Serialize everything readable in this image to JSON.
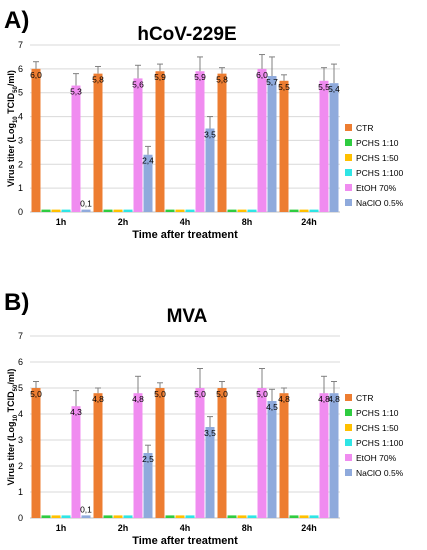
{
  "chart_data": [
    {
      "panel": "A)",
      "type": "bar",
      "title": "hCoV-229E",
      "xlabel": "Time after treatment",
      "ylabel": "Virus titer (Log10 TCID50/ml)",
      "ylim": [
        0,
        7
      ],
      "yticks": [
        0,
        1,
        2,
        3,
        4,
        5,
        6,
        7
      ],
      "grid": true,
      "legend": "right",
      "categories": [
        "1h",
        "2h",
        "4h",
        "8h",
        "24h"
      ],
      "series": [
        {
          "name": "CTR",
          "color": "#ED7D31",
          "values": [
            6.0,
            5.8,
            5.9,
            5.8,
            5.5
          ],
          "err": [
            0.3,
            0.3,
            0.3,
            0.25,
            0.25
          ]
        },
        {
          "name": "PCHS 1:10",
          "color": "#2ECC40",
          "values": [
            0.1,
            0.1,
            0.1,
            0.1,
            0.1
          ],
          "err": [
            0,
            0,
            0,
            0,
            0
          ]
        },
        {
          "name": "PCHS 1:50",
          "color": "#FFC000",
          "values": [
            0.1,
            0.1,
            0.1,
            0.1,
            0.1
          ],
          "err": [
            0,
            0,
            0,
            0,
            0
          ]
        },
        {
          "name": "PCHS 1:100",
          "color": "#2FE5E5",
          "values": [
            0.1,
            0.1,
            0.1,
            0.1,
            0.1
          ],
          "err": [
            0,
            0,
            0,
            0,
            0
          ]
        },
        {
          "name": "EtOH 70%",
          "color": "#F08CF0",
          "values": [
            5.3,
            5.6,
            5.9,
            6.0,
            5.5
          ],
          "err": [
            0.5,
            0.55,
            0.6,
            0.6,
            0.55
          ]
        },
        {
          "name": "NaClO 0.5%",
          "color": "#8FAADC",
          "values": [
            0.1,
            2.4,
            3.5,
            5.7,
            5.4
          ],
          "err": [
            0,
            0.35,
            0.5,
            0.8,
            0.8
          ]
        }
      ],
      "labels": [
        {
          "series": 0,
          "cat": 0,
          "text": "6,0"
        },
        {
          "series": 0,
          "cat": 1,
          "text": "5,8"
        },
        {
          "series": 0,
          "cat": 2,
          "text": "5,9"
        },
        {
          "series": 0,
          "cat": 3,
          "text": "5,8"
        },
        {
          "series": 0,
          "cat": 4,
          "text": "5,5"
        },
        {
          "series": 4,
          "cat": 0,
          "text": "5,3"
        },
        {
          "series": 4,
          "cat": 1,
          "text": "5,6"
        },
        {
          "series": 4,
          "cat": 2,
          "text": "5,9"
        },
        {
          "series": 4,
          "cat": 3,
          "text": "6,0"
        },
        {
          "series": 4,
          "cat": 4,
          "text": "5,5"
        },
        {
          "series": 5,
          "cat": 0,
          "text": "0,1"
        },
        {
          "series": 5,
          "cat": 1,
          "text": "2,4"
        },
        {
          "series": 5,
          "cat": 2,
          "text": "3,5"
        },
        {
          "series": 5,
          "cat": 3,
          "text": "5,7"
        },
        {
          "series": 5,
          "cat": 4,
          "text": "5,4"
        }
      ]
    },
    {
      "panel": "B)",
      "type": "bar",
      "title": "MVA",
      "xlabel": "Time after treatment",
      "ylabel": "Virus titer (Log10 TCID50/ml)",
      "ylim": [
        0,
        7
      ],
      "yticks": [
        0,
        1,
        2,
        3,
        4,
        5,
        6,
        7
      ],
      "grid": true,
      "legend": "right",
      "categories": [
        "1h",
        "2h",
        "4h",
        "8h",
        "24h"
      ],
      "series": [
        {
          "name": "CTR",
          "color": "#ED7D31",
          "values": [
            5.0,
            4.8,
            5.0,
            5.0,
            4.8
          ],
          "err": [
            0.25,
            0.2,
            0.2,
            0.25,
            0.2
          ]
        },
        {
          "name": "PCHS 1:10",
          "color": "#2ECC40",
          "values": [
            0.1,
            0.1,
            0.1,
            0.1,
            0.1
          ],
          "err": [
            0,
            0,
            0,
            0,
            0
          ]
        },
        {
          "name": "PCHS 1:50",
          "color": "#FFC000",
          "values": [
            0.1,
            0.1,
            0.1,
            0.1,
            0.1
          ],
          "err": [
            0,
            0,
            0,
            0,
            0
          ]
        },
        {
          "name": "PCHS 1:100",
          "color": "#2FE5E5",
          "values": [
            0.1,
            0.1,
            0.1,
            0.1,
            0.1
          ],
          "err": [
            0,
            0,
            0,
            0,
            0
          ]
        },
        {
          "name": "EtOH 70%",
          "color": "#F08CF0",
          "values": [
            4.3,
            4.8,
            5.0,
            5.0,
            4.8
          ],
          "err": [
            0.6,
            0.65,
            0.75,
            0.75,
            0.65
          ]
        },
        {
          "name": "NaClO 0.5%",
          "color": "#8FAADC",
          "values": [
            0.1,
            2.5,
            3.5,
            4.5,
            4.8
          ],
          "err": [
            0,
            0.3,
            0.4,
            0.45,
            0.45
          ]
        }
      ],
      "labels": [
        {
          "series": 0,
          "cat": 0,
          "text": "5,0"
        },
        {
          "series": 0,
          "cat": 1,
          "text": "4,8"
        },
        {
          "series": 0,
          "cat": 2,
          "text": "5,0"
        },
        {
          "series": 0,
          "cat": 3,
          "text": "5,0"
        },
        {
          "series": 0,
          "cat": 4,
          "text": "4,8"
        },
        {
          "series": 4,
          "cat": 0,
          "text": "4,3"
        },
        {
          "series": 4,
          "cat": 1,
          "text": "4,8"
        },
        {
          "series": 4,
          "cat": 2,
          "text": "5,0"
        },
        {
          "series": 4,
          "cat": 3,
          "text": "5,0"
        },
        {
          "series": 4,
          "cat": 4,
          "text": "4,8"
        },
        {
          "series": 5,
          "cat": 0,
          "text": "0,1"
        },
        {
          "series": 5,
          "cat": 1,
          "text": "2,5"
        },
        {
          "series": 5,
          "cat": 2,
          "text": "3,5"
        },
        {
          "series": 5,
          "cat": 3,
          "text": "4,5"
        },
        {
          "series": 5,
          "cat": 4,
          "text": "4,8"
        }
      ]
    }
  ]
}
